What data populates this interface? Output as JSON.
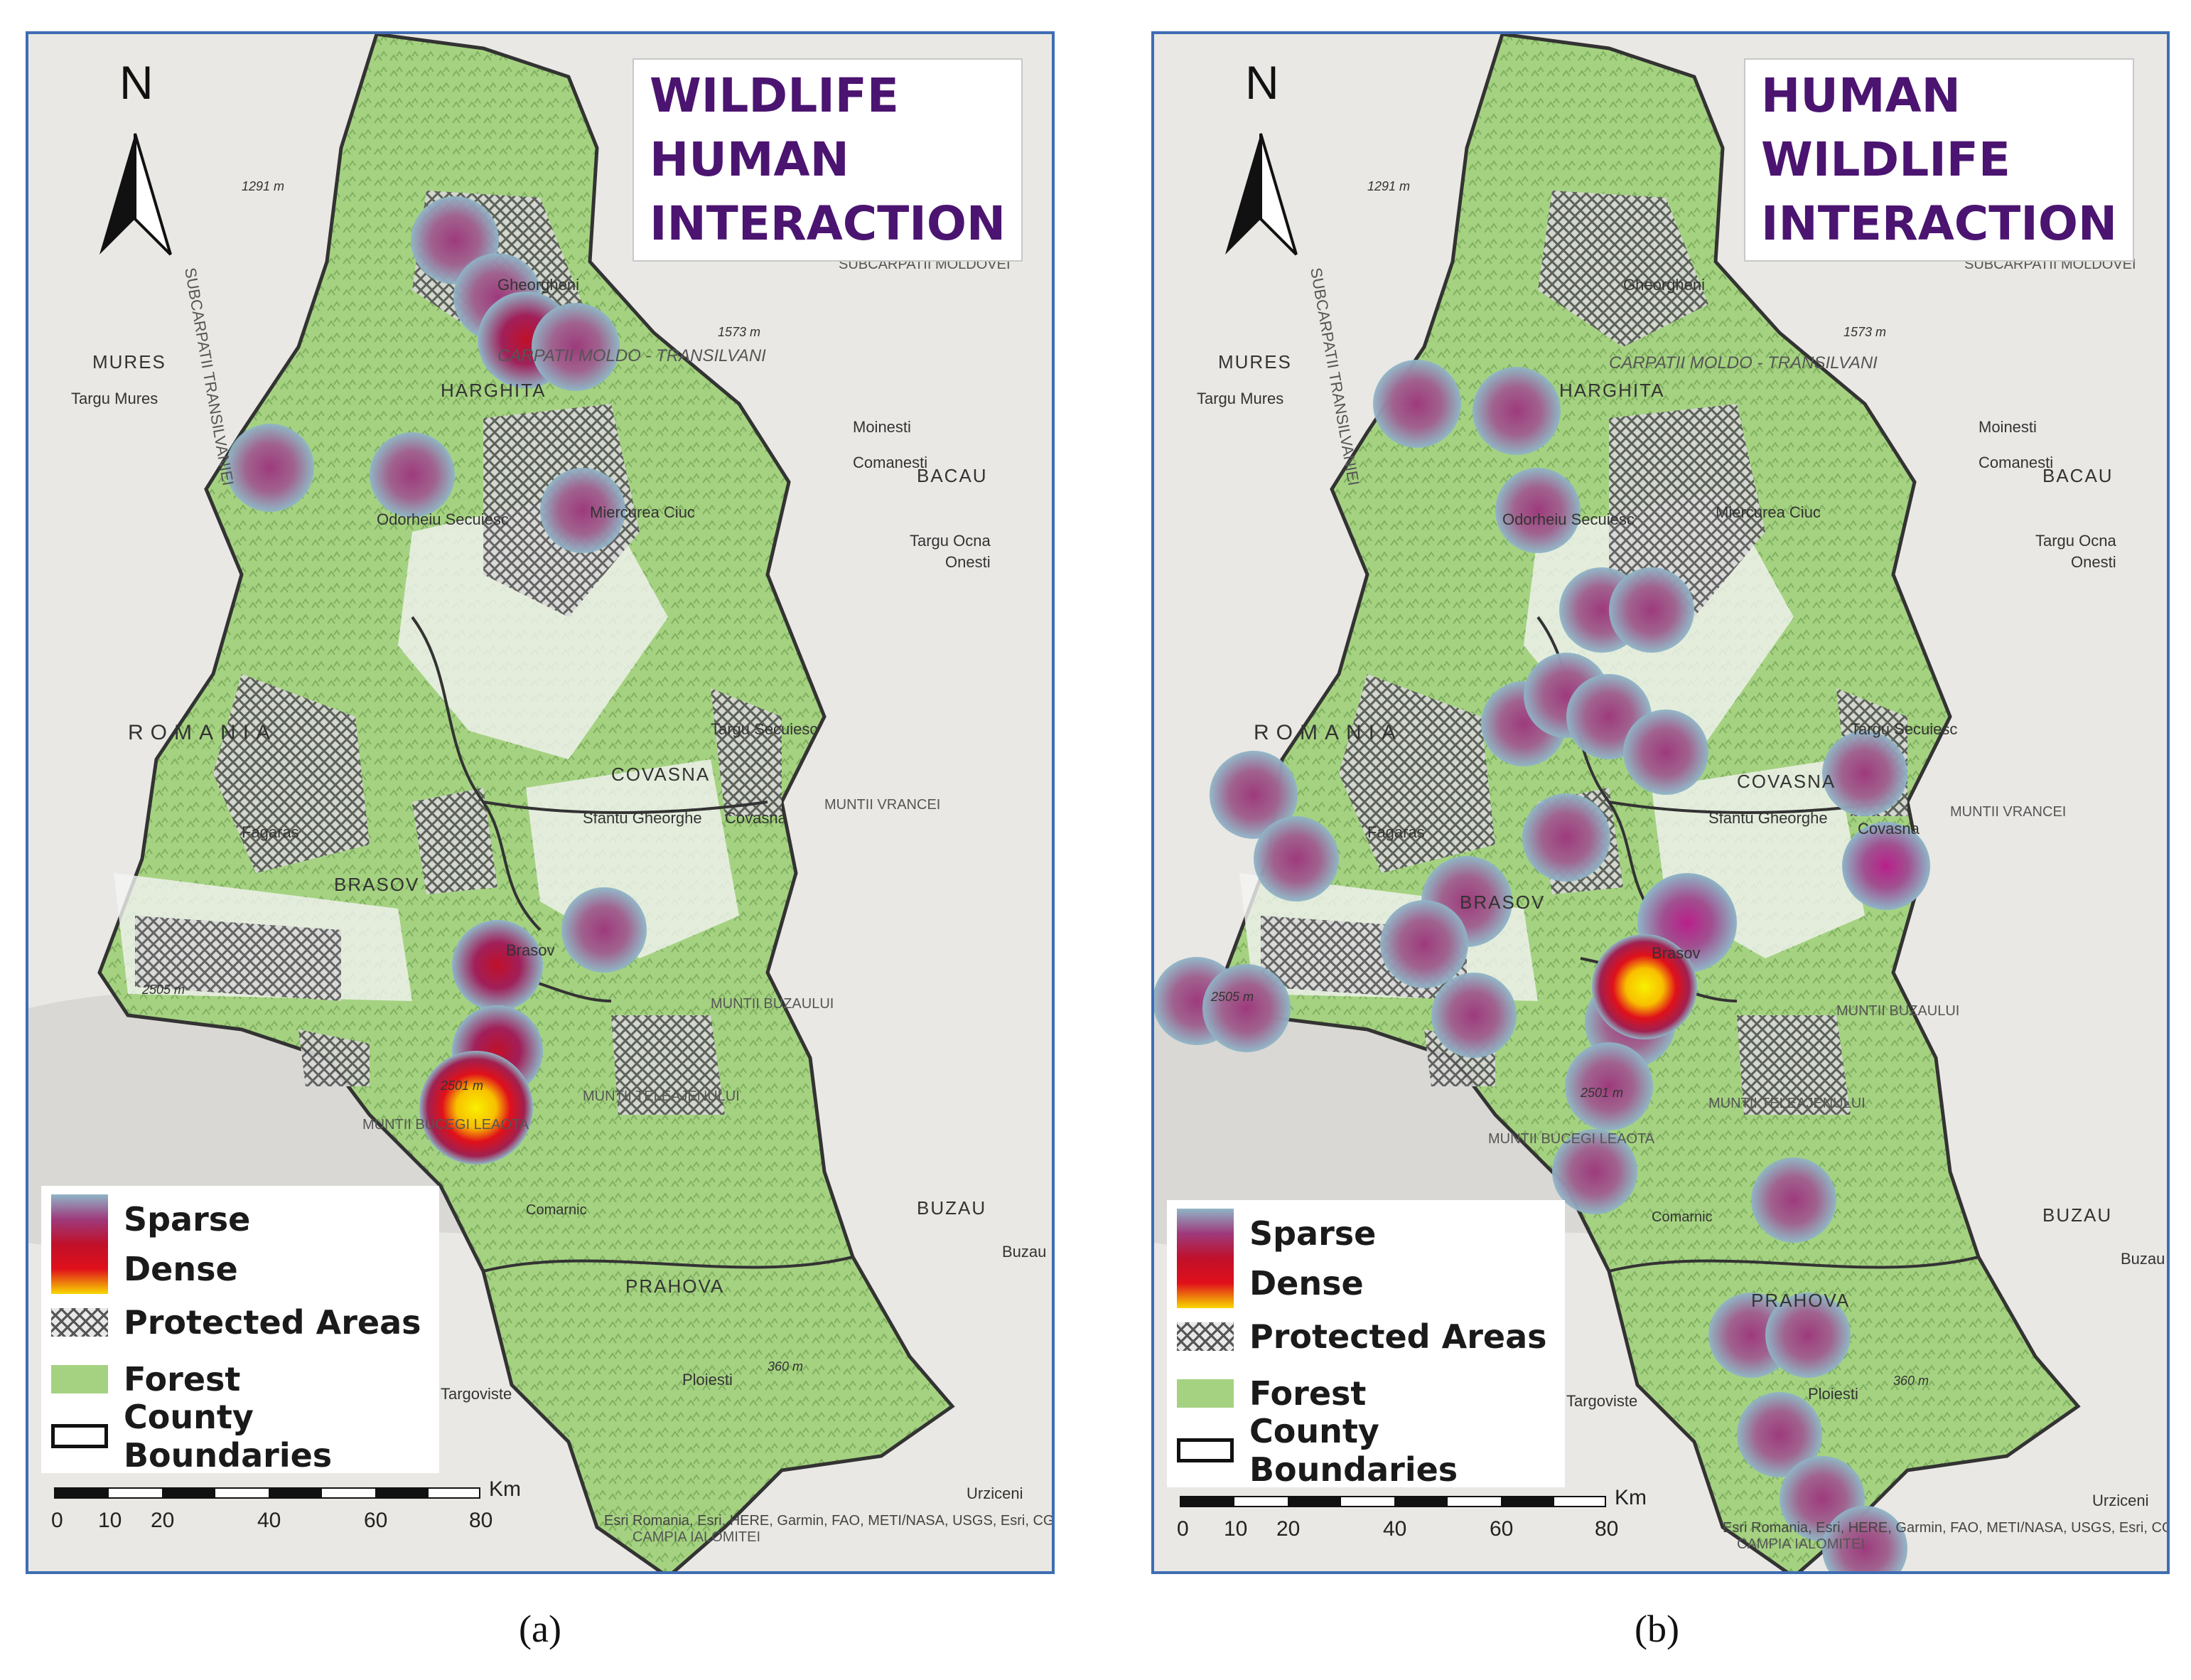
{
  "panels": [
    {
      "id": "a",
      "title_lines": [
        "WILDLIFE",
        "HUMAN",
        "INTERACTION"
      ],
      "north": "N",
      "legend": {
        "gradient_low": "Sparse",
        "gradient_high": "Dense",
        "protected": "Protected Areas",
        "forest": "Forest",
        "county": "County Boundaries"
      },
      "scale": {
        "ticks": [
          "0",
          "10",
          "20",
          "40",
          "60",
          "80"
        ],
        "unit": "Km"
      },
      "credit": "Esri Romania, Esri, HERE, Garmin, FAO, METI/NASA, USGS, Esri, CGIAR, USGS",
      "caption": "(a)"
    },
    {
      "id": "b",
      "title_lines": [
        "HUMAN",
        "WILDLIFE",
        "INTERACTION"
      ],
      "north": "N",
      "legend": {
        "gradient_low": "Sparse",
        "gradient_high": "Dense",
        "protected": "Protected Areas",
        "forest": "Forest",
        "county": "County Boundaries"
      },
      "scale": {
        "ticks": [
          "0",
          "10",
          "20",
          "40",
          "60",
          "80"
        ],
        "unit": "Km"
      },
      "credit": "Esri Romania, Esri, HERE, Garmin, FAO, METI/NASA, USGS, Esri, CGIAR, USGS",
      "caption": "(b)"
    }
  ],
  "place_labels": {
    "a": [
      "HARGHITA",
      "COVASNA",
      "BRASOV",
      "PRAHOVA",
      "MURES",
      "BACAU",
      "BUZAU",
      "ROMANIA",
      "Targu Mures",
      "Odorheiu Secuiesc",
      "Miercurea Ciuc",
      "Gheorgheni",
      "Sfantu Gheorghe",
      "Covasna",
      "Targu Secuiesc",
      "Brasov",
      "Fagaras",
      "Ploiesti",
      "Targoviste",
      "Comanesti",
      "Moinesti",
      "Targu Ocna",
      "Onesti",
      "Buzau",
      "Urziceni",
      "CARPATII MOLDO - TRANSILVANI",
      "SUBCARPATII TRANSILVANIEI",
      "SUBCARPATII MOLDOVEI",
      "MUNTII TELEAJENULUI",
      "MUNTII BUZAULUI",
      "MUNTII VRANCEI",
      "MUNTII BUCEGI LEAOTA",
      "CAMPIA IALOMITEI",
      "Comarnic",
      "1291 m",
      "1573 m",
      "2505 m",
      "2501 m",
      "360 m"
    ],
    "b": [
      "HARGHITA",
      "COVASNA",
      "BRASOV",
      "PRAHOVA",
      "MURES",
      "BACAU",
      "BUZAU",
      "ROMANIA",
      "Targu Mures",
      "Odorheiu Secuiesc",
      "Miercurea Ciuc",
      "Gheorgheni",
      "Sfantu Gheorghe",
      "Covasna",
      "Targu Secuiesc",
      "Brasov",
      "Fagaras",
      "Ploiesti",
      "Targoviste",
      "Comanesti",
      "Moinesti",
      "Targu Ocna",
      "Onesti",
      "Buzau",
      "Urziceni",
      "CARPATII MOLDO - TRANSILVANI",
      "SUBCARPATII TRANSILVANIEI",
      "SUBCARPATII MOLDOVEI",
      "MUNTII TELEAJENULUI",
      "MUNTII BUZAULUI",
      "MUNTII VRANCEI",
      "MUNTII BUCEGI LEAOTA",
      "CAMPIA IALOMITEI",
      "Comarnic",
      "1291 m",
      "1573 m",
      "2505 m",
      "2501 m",
      "360 m"
    ]
  },
  "hotspot_intensity": {
    "a": [
      "sparse",
      "sparse",
      "medium",
      "sparse",
      "sparse",
      "sparse",
      "sparse",
      "medium",
      "medium",
      "dense"
    ],
    "b": [
      "sparse",
      "sparse",
      "sparse",
      "sparse",
      "sparse",
      "sparse",
      "sparse",
      "sparse",
      "sparse",
      "sparse",
      "sparse",
      "sparse",
      "sparse",
      "sparse",
      "sparse",
      "sparse",
      "sparse",
      "medium",
      "dense",
      "sparse",
      "sparse",
      "sparse",
      "sparse",
      "sparse",
      "sparse",
      "sparse",
      "sparse",
      "sparse",
      "sparse"
    ]
  },
  "colors": {
    "title": "#4b1470",
    "frame": "#3e6db3",
    "forest": "#a5d281",
    "sparse": "#8fb5c7",
    "dense": "#f8d800",
    "protected_hatch": "#555555"
  }
}
